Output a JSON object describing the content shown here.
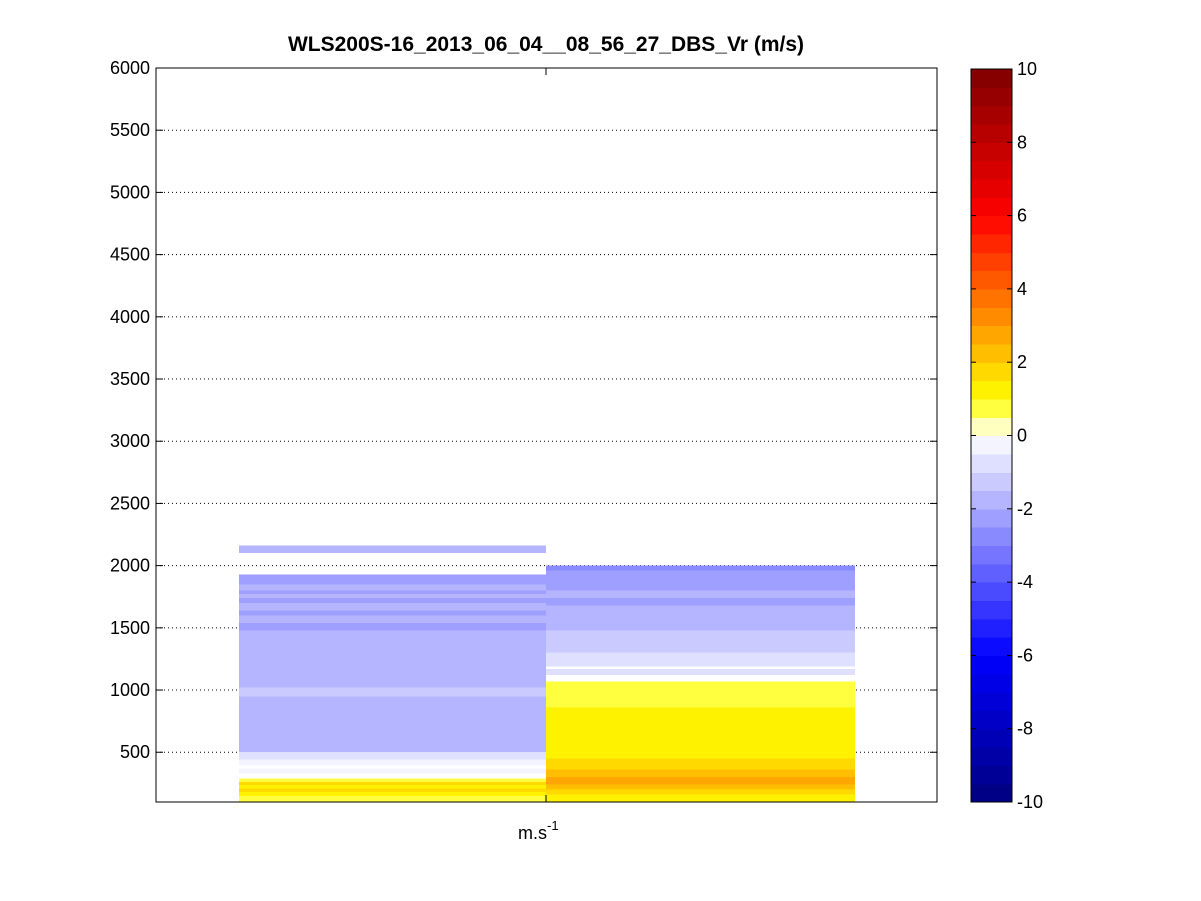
{
  "chart_data": {
    "type": "heatmap",
    "title": "WLS200S-16_2013_06_04__08_56_27_DBS_Vr (m/s)",
    "xlabel": "m.s",
    "xlabel_superscript": "-1",
    "ylabel": "",
    "ylim": [
      100,
      6000
    ],
    "yticks": [
      500,
      1000,
      1500,
      2000,
      2500,
      3000,
      3500,
      4000,
      4500,
      5000,
      5500,
      6000
    ],
    "grid": "y-dotted",
    "colorbar": {
      "range": [
        -10,
        10
      ],
      "ticks": [
        -10,
        -8,
        -6,
        -4,
        -2,
        0,
        2,
        4,
        6,
        8,
        10
      ],
      "colormap": "blue-white-yellow-red",
      "colors": {
        "min": "#00007f",
        "low": "#0000ff",
        "zero": "#ffffff",
        "mid": "#ffff00",
        "hot": "#ff0000",
        "max": "#7f0000"
      }
    },
    "columns": [
      {
        "segments": [
          {
            "y0": 100,
            "y1": 150,
            "v": 0.9
          },
          {
            "y0": 150,
            "y1": 180,
            "v": 1.2
          },
          {
            "y0": 180,
            "y1": 210,
            "v": 1.6
          },
          {
            "y0": 210,
            "y1": 235,
            "v": 1.1
          },
          {
            "y0": 235,
            "y1": 260,
            "v": 1.9
          },
          {
            "y0": 260,
            "y1": 290,
            "v": 0.6
          },
          {
            "y0": 330,
            "y1": 370,
            "v": -0.4
          },
          {
            "y0": 395,
            "y1": 440,
            "v": -0.5
          },
          {
            "y0": 440,
            "y1": 500,
            "v": -0.8
          },
          {
            "y0": 500,
            "y1": 560,
            "v": -1.7
          },
          {
            "y0": 560,
            "y1": 600,
            "v": -2.0
          },
          {
            "y0": 600,
            "y1": 950,
            "v": -1.6
          },
          {
            "y0": 950,
            "y1": 1020,
            "v": -1.3
          },
          {
            "y0": 1020,
            "y1": 1200,
            "v": -1.7
          },
          {
            "y0": 1200,
            "y1": 1320,
            "v": -2.0
          },
          {
            "y0": 1320,
            "y1": 1480,
            "v": -1.8
          },
          {
            "y0": 1480,
            "y1": 1540,
            "v": -2.2
          },
          {
            "y0": 1540,
            "y1": 1600,
            "v": -1.9
          },
          {
            "y0": 1600,
            "y1": 1640,
            "v": -2.3
          },
          {
            "y0": 1640,
            "y1": 1700,
            "v": -1.8
          },
          {
            "y0": 1700,
            "y1": 1740,
            "v": -2.1
          },
          {
            "y0": 1740,
            "y1": 1770,
            "v": -1.6
          },
          {
            "y0": 1770,
            "y1": 1800,
            "v": -2.3
          },
          {
            "y0": 1800,
            "y1": 1850,
            "v": -1.9
          },
          {
            "y0": 1850,
            "y1": 1880,
            "v": -2.2
          },
          {
            "y0": 1880,
            "y1": 1930,
            "v": -2.4
          },
          {
            "y0": 2100,
            "y1": 2160,
            "v": -1.6
          }
        ]
      },
      {
        "segments": [
          {
            "y0": 100,
            "y1": 160,
            "v": 1.0
          },
          {
            "y0": 160,
            "y1": 200,
            "v": 1.5
          },
          {
            "y0": 200,
            "y1": 240,
            "v": 2.0
          },
          {
            "y0": 240,
            "y1": 300,
            "v": 2.6
          },
          {
            "y0": 300,
            "y1": 360,
            "v": 2.0
          },
          {
            "y0": 360,
            "y1": 450,
            "v": 1.5
          },
          {
            "y0": 450,
            "y1": 560,
            "v": 1.2
          },
          {
            "y0": 560,
            "y1": 700,
            "v": 1.4
          },
          {
            "y0": 700,
            "y1": 860,
            "v": 1.1
          },
          {
            "y0": 860,
            "y1": 960,
            "v": 0.9
          },
          {
            "y0": 960,
            "y1": 1070,
            "v": 0.8
          },
          {
            "y0": 1120,
            "y1": 1170,
            "v": -0.6
          },
          {
            "y0": 1190,
            "y1": 1260,
            "v": -0.9
          },
          {
            "y0": 1260,
            "y1": 1300,
            "v": -0.7
          },
          {
            "y0": 1300,
            "y1": 1340,
            "v": -1.3
          },
          {
            "y0": 1340,
            "y1": 1480,
            "v": -1.1
          },
          {
            "y0": 1480,
            "y1": 1560,
            "v": -1.6
          },
          {
            "y0": 1560,
            "y1": 1680,
            "v": -1.9
          },
          {
            "y0": 1680,
            "y1": 1740,
            "v": -2.3
          },
          {
            "y0": 1740,
            "y1": 1800,
            "v": -2.0
          },
          {
            "y0": 1800,
            "y1": 1880,
            "v": -2.2
          },
          {
            "y0": 1880,
            "y1": 1960,
            "v": -2.4
          },
          {
            "y0": 1960,
            "y1": 2000,
            "v": -2.7
          }
        ]
      }
    ]
  }
}
